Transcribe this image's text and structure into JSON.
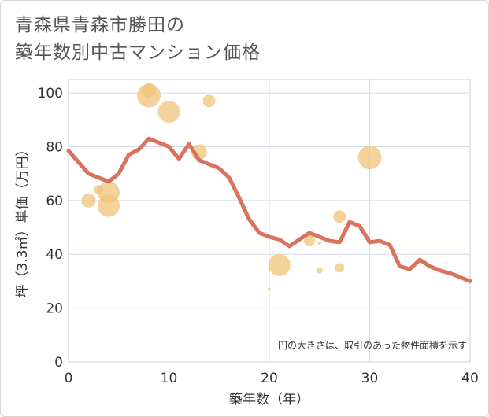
{
  "title_lines": [
    "青森県青森市勝田の",
    "築年数別中古マンション価格"
  ],
  "chart_data": {
    "type": "scatter",
    "xlabel": "築年数（年）",
    "ylabel": "坪（3.3㎡）単価（万円）",
    "xlim": [
      0,
      40
    ],
    "ylim": [
      0,
      105
    ],
    "xticks": [
      0,
      10,
      20,
      30,
      40
    ],
    "yticks": [
      0,
      20,
      40,
      60,
      80,
      100
    ],
    "grid": true,
    "note": "円の大きさは、取引のあった物件面積を示す",
    "colors": {
      "bubble": "#f0c37a",
      "line": "#d9735e",
      "grid": "#d4dbe8"
    },
    "bubbles": [
      {
        "x": 2,
        "y": 60,
        "size": 9
      },
      {
        "x": 3,
        "y": 64,
        "size": 6
      },
      {
        "x": 4,
        "y": 63,
        "size": 14
      },
      {
        "x": 4,
        "y": 58,
        "size": 14
      },
      {
        "x": 8,
        "y": 99,
        "size": 15
      },
      {
        "x": 8,
        "y": 101,
        "size": 9
      },
      {
        "x": 10,
        "y": 93,
        "size": 14
      },
      {
        "x": 13,
        "y": 78,
        "size": 10
      },
      {
        "x": 14,
        "y": 97,
        "size": 8
      },
      {
        "x": 20,
        "y": 27,
        "size": 2
      },
      {
        "x": 21,
        "y": 36,
        "size": 14
      },
      {
        "x": 24,
        "y": 45,
        "size": 7
      },
      {
        "x": 25,
        "y": 44,
        "size": 2
      },
      {
        "x": 25,
        "y": 34,
        "size": 4
      },
      {
        "x": 27,
        "y": 54,
        "size": 8
      },
      {
        "x": 27,
        "y": 35,
        "size": 6
      },
      {
        "x": 30,
        "y": 76,
        "size": 15
      }
    ],
    "line": {
      "x": [
        0,
        2,
        3,
        4,
        5,
        6,
        7,
        8,
        9,
        10,
        11,
        12,
        13,
        14,
        15,
        16,
        17,
        18,
        19,
        20,
        21,
        22,
        23,
        24,
        25,
        26,
        27,
        28,
        29,
        30,
        31,
        32,
        33,
        34,
        35,
        36,
        37,
        38,
        39,
        40
      ],
      "y": [
        78.5,
        70,
        68.5,
        67,
        70,
        77,
        79,
        83,
        81.5,
        80,
        75.5,
        81,
        75,
        73.5,
        72,
        68.5,
        61,
        53,
        48,
        46.5,
        45.5,
        43,
        45.5,
        48,
        46.5,
        45,
        44.5,
        52,
        50.5,
        44.5,
        45,
        43.5,
        35.5,
        34.5,
        38,
        35.5,
        34,
        33,
        31.5,
        30
      ]
    }
  }
}
